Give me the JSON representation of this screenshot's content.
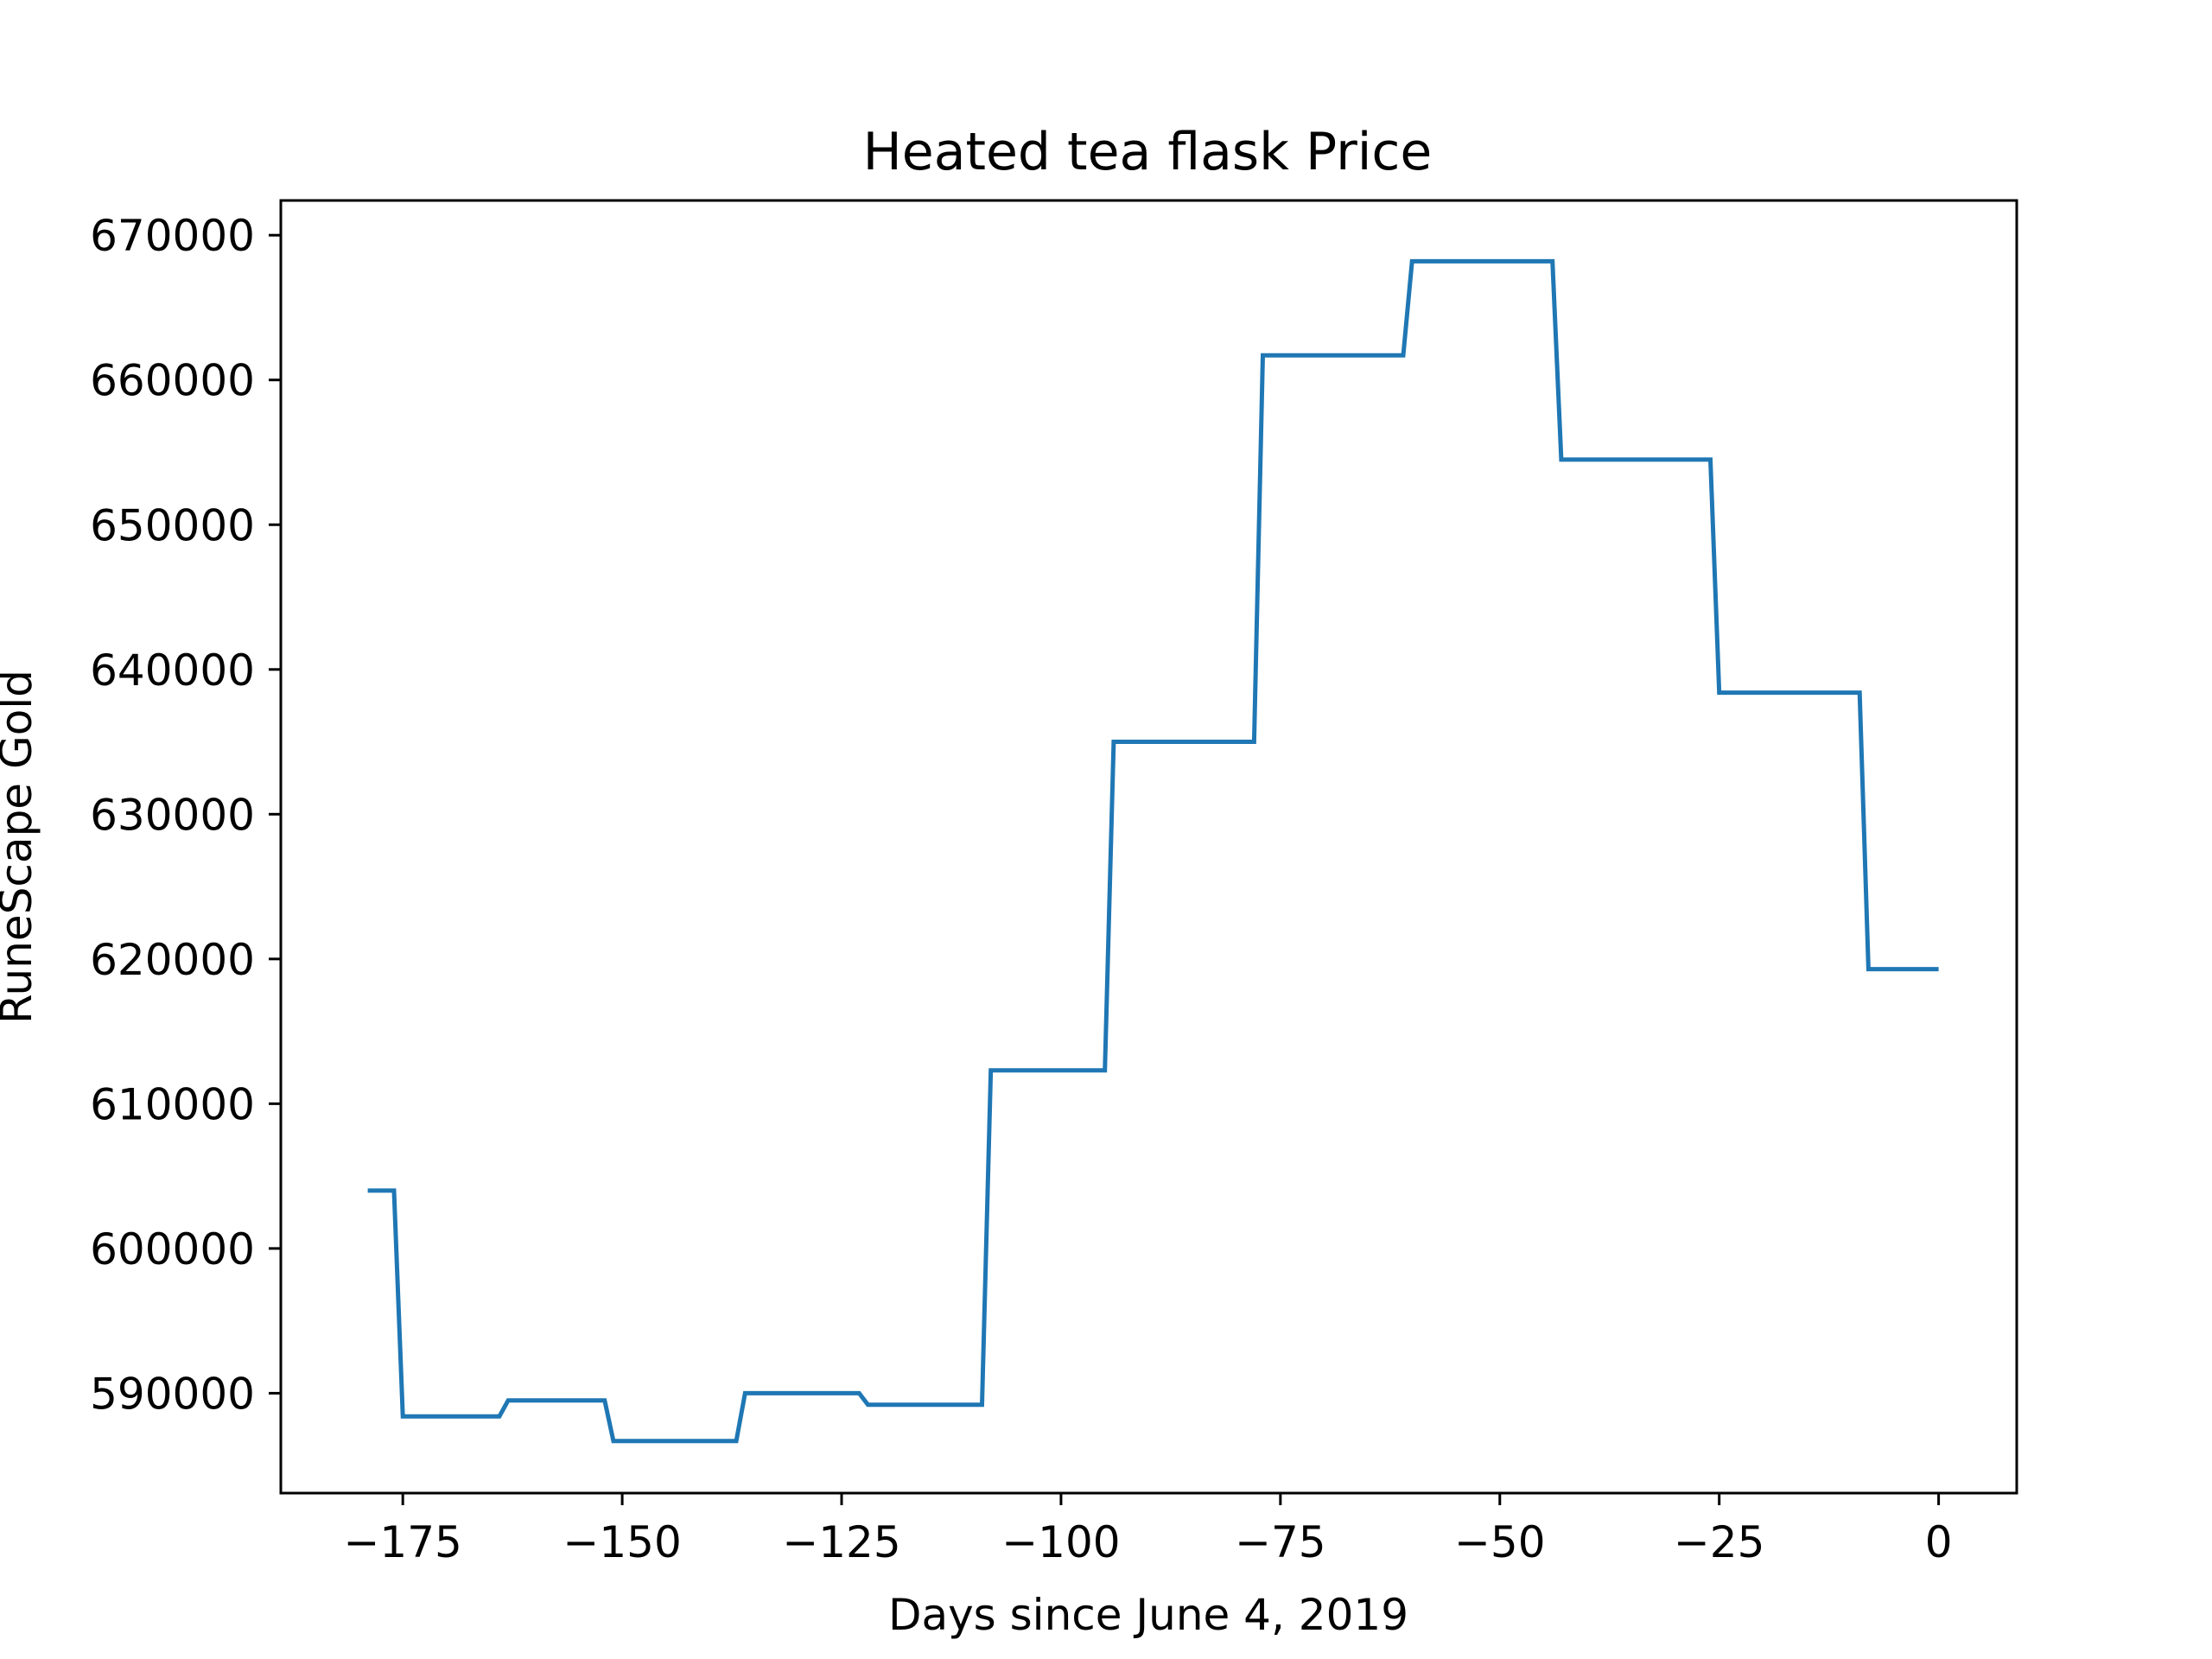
{
  "chart_data": {
    "type": "line",
    "title": "Heated tea flask Price",
    "xlabel": "Days since June 4, 2019",
    "ylabel": "RuneScape Gold",
    "xlim": [
      -188.9,
      8.9
    ],
    "ylim": [
      583100,
      672400
    ],
    "xticks": [
      -175,
      -150,
      -125,
      -100,
      -75,
      -50,
      -25,
      0
    ],
    "xtick_labels": [
      "−175",
      "−150",
      "−125",
      "−100",
      "−75",
      "−50",
      "−25",
      "0"
    ],
    "yticks": [
      590000,
      600000,
      610000,
      620000,
      630000,
      640000,
      650000,
      660000,
      670000
    ],
    "ytick_labels": [
      "590000",
      "600000",
      "610000",
      "620000",
      "630000",
      "640000",
      "650000",
      "660000",
      "670000"
    ],
    "grid": false,
    "line_color": "#1f77b4",
    "series": [
      {
        "x": [
          -179,
          -176,
          -175,
          -164,
          -163,
          -152,
          -151,
          -137,
          -136,
          -123,
          -122,
          -109,
          -108,
          -95,
          -94,
          -78,
          -77,
          -61,
          -60,
          -44,
          -43,
          -26,
          -25,
          -9,
          -8,
          0
        ],
        "y": [
          604000,
          604000,
          588400,
          588400,
          589500,
          589500,
          586700,
          586700,
          590000,
          590000,
          589200,
          589200,
          612300,
          612300,
          635000,
          635000,
          661700,
          661700,
          668200,
          668200,
          654500,
          654500,
          638400,
          638400,
          619300,
          619300
        ]
      }
    ]
  }
}
